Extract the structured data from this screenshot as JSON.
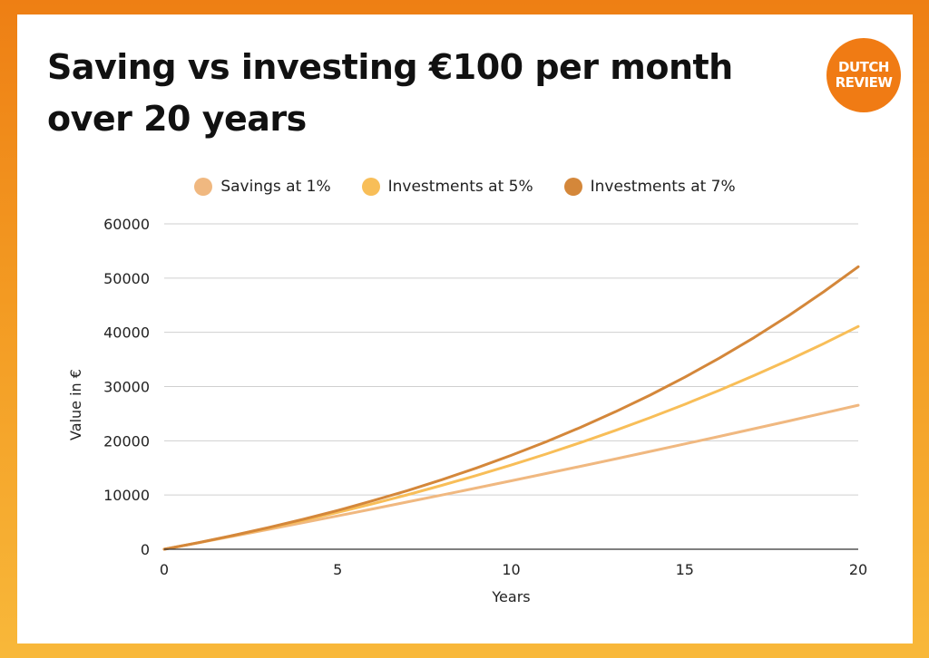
{
  "title": "Saving vs investing €100 per month over 20 years",
  "logo": {
    "line1": "DUTCH",
    "line2": "REVIEW",
    "color": "#f07b14"
  },
  "chart_data": {
    "type": "line",
    "title": "Saving vs investing €100 per month over 20 years",
    "xlabel": "Years",
    "ylabel": "Value in €",
    "xlim": [
      0,
      20
    ],
    "ylim": [
      0,
      60000
    ],
    "xticks": [
      0,
      5,
      10,
      15,
      20
    ],
    "yticks": [
      0,
      10000,
      20000,
      30000,
      40000,
      50000,
      60000
    ],
    "grid": true,
    "legend_position": "top-center",
    "x": [
      0,
      1,
      2,
      3,
      4,
      5,
      6,
      7,
      8,
      9,
      10,
      11,
      12,
      13,
      14,
      15,
      16,
      17,
      18,
      19,
      20
    ],
    "series": [
      {
        "name": "Savings at 1%",
        "color": "#f0b880",
        "values": [
          0,
          1207,
          2425,
          3655,
          4898,
          6152,
          7420,
          8700,
          9993,
          11299,
          12618,
          13950,
          15295,
          16654,
          18026,
          19413,
          20813,
          22227,
          23655,
          25098,
          26555
        ]
      },
      {
        "name": "Investments at 5%",
        "color": "#f8be58",
        "values": [
          0,
          1228,
          2518,
          3875,
          5299,
          6801,
          8377,
          10034,
          11776,
          13606,
          15528,
          17549,
          19674,
          21906,
          24252,
          26719,
          29312,
          32037,
          34901,
          37911,
          41075
        ]
      },
      {
        "name": "Investments at 7%",
        "color": "#d4873a",
        "values": [
          0,
          1239,
          2567,
          3991,
          5518,
          7159,
          8918,
          10804,
          12827,
          14996,
          17308,
          19809,
          22481,
          25347,
          28420,
          31716,
          35250,
          39040,
          43104,
          47462,
          52093
        ]
      }
    ]
  }
}
